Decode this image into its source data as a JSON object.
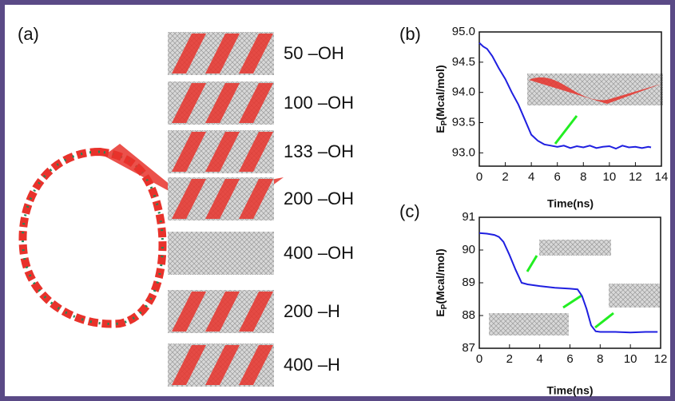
{
  "panel_a": {
    "label": "(a)",
    "rows": [
      "50 –OH",
      "100 –OH",
      "133 –OH",
      "200 –OH",
      "400 –OH",
      "200 –H",
      "400 –H"
    ]
  },
  "chart_data": [
    {
      "type": "line",
      "label": "(b)",
      "x_label": "Time(ns)",
      "y_label": {
        "symbol": "E",
        "subscript": "P",
        "unit": "(Mcal/mol)"
      },
      "color": "#1f1fe0",
      "x": [
        0,
        0.3,
        0.6,
        1,
        1.5,
        2,
        2.5,
        3,
        3.5,
        4,
        4.5,
        5,
        5.5,
        6,
        6.5,
        7,
        7.5,
        8,
        8.5,
        9,
        9.5,
        10,
        10.5,
        11,
        11.5,
        12,
        12.5,
        13,
        13.2
      ],
      "values": [
        94.82,
        94.76,
        94.72,
        94.6,
        94.4,
        94.22,
        94.0,
        93.8,
        93.55,
        93.3,
        93.2,
        93.14,
        93.12,
        93.1,
        93.12,
        93.08,
        93.11,
        93.09,
        93.12,
        93.08,
        93.1,
        93.11,
        93.07,
        93.12,
        93.09,
        93.1,
        93.08,
        93.1,
        93.09
      ],
      "xlim": [
        0,
        14
      ],
      "xticks": [
        0,
        2,
        4,
        6,
        8,
        10,
        12,
        14
      ],
      "ylim": [
        92.78,
        95.0
      ],
      "yticks": [
        {
          "value": 93,
          "label": "93.0"
        },
        93.5,
        {
          "value": 94,
          "label": "94.0"
        },
        94.5,
        {
          "value": 95,
          "label": "95.0"
        }
      ]
    },
    {
      "type": "line",
      "label": "(c)",
      "x_label": "Time(ns)",
      "y_label": {
        "symbol": "E",
        "subscript": "P",
        "unit": "(Mcal/mol)"
      },
      "color": "#1f1fe0",
      "x": [
        0,
        0.5,
        1,
        1.3,
        1.6,
        2,
        2.4,
        2.8,
        3.2,
        4,
        5,
        6,
        6.5,
        6.8,
        7.1,
        7.4,
        7.7,
        8,
        9,
        10,
        11,
        11.8
      ],
      "values": [
        90.52,
        90.5,
        90.46,
        90.4,
        90.25,
        89.85,
        89.4,
        89.0,
        88.95,
        88.9,
        88.85,
        88.82,
        88.8,
        88.6,
        88.2,
        87.7,
        87.52,
        87.5,
        87.5,
        87.48,
        87.5,
        87.5
      ],
      "xlim": [
        0,
        12
      ],
      "xticks": [
        0,
        2,
        4,
        6,
        8,
        10,
        12
      ],
      "ylim": [
        87,
        91
      ],
      "yticks": [
        87,
        88,
        89,
        90,
        91
      ]
    }
  ]
}
